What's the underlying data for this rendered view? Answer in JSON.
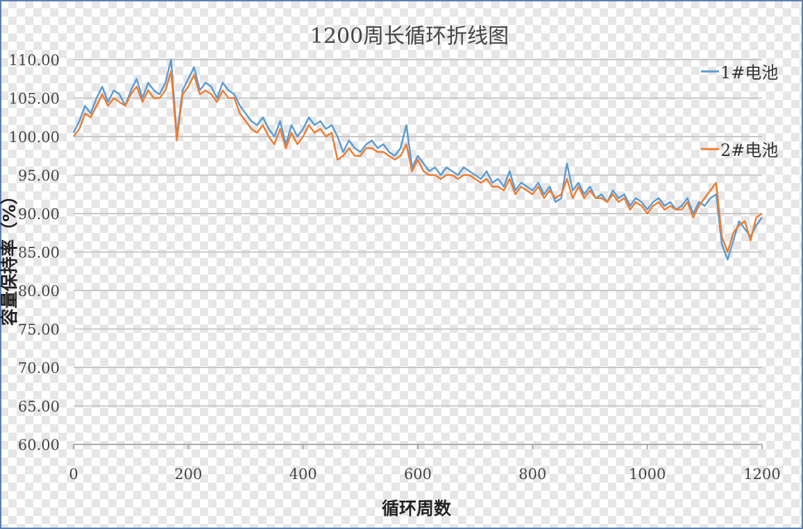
{
  "chart_data": {
    "type": "line",
    "title": "1200周长循环折线图",
    "xlabel": "循环周数",
    "ylabel": "容量保持率（%）",
    "xlim": [
      0,
      1200
    ],
    "ylim": [
      60,
      110
    ],
    "x_ticks": [
      "0",
      "200",
      "400",
      "600",
      "800",
      "1000",
      "1200"
    ],
    "y_ticks": [
      "110.00",
      "105.00",
      "100.00",
      "95.00",
      "90.00",
      "85.00",
      "80.00",
      "75.00",
      "70.00",
      "65.00",
      "60.00"
    ],
    "grid": true,
    "legend": "right",
    "series": [
      {
        "name": "1#电池",
        "color": "#5b9bd5",
        "x": [
          0,
          10,
          20,
          30,
          40,
          50,
          60,
          70,
          80,
          90,
          100,
          110,
          120,
          130,
          140,
          150,
          160,
          170,
          180,
          190,
          200,
          210,
          220,
          230,
          240,
          250,
          260,
          270,
          280,
          290,
          300,
          310,
          320,
          330,
          340,
          350,
          360,
          370,
          380,
          390,
          400,
          410,
          420,
          430,
          440,
          450,
          460,
          470,
          480,
          490,
          500,
          510,
          520,
          530,
          540,
          550,
          560,
          570,
          580,
          590,
          600,
          610,
          620,
          630,
          640,
          650,
          660,
          670,
          680,
          690,
          700,
          710,
          720,
          730,
          740,
          750,
          760,
          770,
          780,
          790,
          800,
          810,
          820,
          830,
          840,
          850,
          860,
          870,
          880,
          890,
          900,
          910,
          920,
          930,
          940,
          950,
          960,
          970,
          980,
          990,
          1000,
          1010,
          1020,
          1030,
          1040,
          1050,
          1060,
          1070,
          1080,
          1090,
          1100,
          1110,
          1120,
          1130,
          1140,
          1150,
          1160,
          1170,
          1180,
          1190,
          1200
        ],
        "values": [
          100.5,
          102.0,
          104.0,
          103.0,
          105.0,
          106.5,
          104.5,
          106.0,
          105.5,
          104.0,
          106.0,
          107.5,
          105.0,
          107.0,
          106.0,
          105.5,
          107.0,
          110.0,
          100.0,
          106.0,
          107.5,
          109.0,
          106.0,
          107.0,
          106.5,
          105.0,
          107.0,
          106.0,
          105.5,
          104.0,
          103.0,
          102.0,
          101.5,
          102.5,
          101.0,
          100.0,
          102.0,
          99.0,
          101.5,
          100.0,
          101.0,
          102.5,
          101.5,
          102.0,
          101.0,
          101.5,
          100.0,
          98.0,
          99.5,
          98.5,
          98.0,
          99.0,
          99.5,
          98.5,
          99.0,
          98.0,
          97.5,
          98.5,
          101.5,
          96.0,
          97.5,
          96.5,
          95.5,
          96.0,
          95.0,
          96.0,
          95.5,
          95.0,
          96.0,
          95.5,
          95.0,
          94.5,
          95.5,
          94.0,
          94.5,
          93.5,
          95.5,
          93.0,
          94.0,
          93.5,
          93.0,
          94.0,
          92.5,
          93.5,
          91.5,
          92.0,
          96.5,
          93.0,
          94.0,
          92.5,
          93.5,
          92.0,
          92.5,
          91.5,
          93.0,
          92.0,
          92.5,
          91.0,
          92.0,
          91.5,
          90.5,
          91.5,
          92.0,
          91.0,
          91.5,
          90.5,
          91.0,
          92.0,
          90.0,
          91.5,
          91.0,
          92.0,
          92.5,
          86.0,
          84.0,
          86.5,
          89.0,
          88.0,
          87.0,
          88.5,
          89.5
        ]
      },
      {
        "name": "2#电池",
        "color": "#ed7d31",
        "x": [
          0,
          10,
          20,
          30,
          40,
          50,
          60,
          70,
          80,
          90,
          100,
          110,
          120,
          130,
          140,
          150,
          160,
          170,
          180,
          190,
          200,
          210,
          220,
          230,
          240,
          250,
          260,
          270,
          280,
          290,
          300,
          310,
          320,
          330,
          340,
          350,
          360,
          370,
          380,
          390,
          400,
          410,
          420,
          430,
          440,
          450,
          460,
          470,
          480,
          490,
          500,
          510,
          520,
          530,
          540,
          550,
          560,
          570,
          580,
          590,
          600,
          610,
          620,
          630,
          640,
          650,
          660,
          670,
          680,
          690,
          700,
          710,
          720,
          730,
          740,
          750,
          760,
          770,
          780,
          790,
          800,
          810,
          820,
          830,
          840,
          850,
          860,
          870,
          880,
          890,
          900,
          910,
          920,
          930,
          940,
          950,
          960,
          970,
          980,
          990,
          1000,
          1010,
          1020,
          1030,
          1040,
          1050,
          1060,
          1070,
          1080,
          1090,
          1100,
          1110,
          1120,
          1130,
          1140,
          1150,
          1160,
          1170,
          1180,
          1190,
          1200
        ],
        "values": [
          100.0,
          101.0,
          103.0,
          102.5,
          104.0,
          105.5,
          104.0,
          105.0,
          104.5,
          104.0,
          105.5,
          106.5,
          104.5,
          106.0,
          105.0,
          105.0,
          106.0,
          108.5,
          99.5,
          105.5,
          106.5,
          108.0,
          105.5,
          106.0,
          105.5,
          104.5,
          106.0,
          105.0,
          105.0,
          103.0,
          102.0,
          101.0,
          100.5,
          101.5,
          100.0,
          99.0,
          101.0,
          98.5,
          100.5,
          99.0,
          100.0,
          101.5,
          100.5,
          101.0,
          100.0,
          100.5,
          97.0,
          97.5,
          98.5,
          97.5,
          97.5,
          98.5,
          98.5,
          98.0,
          98.0,
          97.5,
          97.0,
          97.5,
          99.0,
          95.5,
          97.0,
          95.5,
          95.0,
          95.0,
          94.5,
          95.0,
          95.0,
          94.5,
          95.0,
          95.0,
          94.5,
          94.0,
          94.5,
          93.5,
          93.5,
          93.0,
          94.5,
          92.5,
          93.5,
          93.0,
          92.5,
          93.5,
          92.0,
          93.0,
          92.0,
          92.5,
          94.5,
          92.0,
          93.5,
          92.0,
          93.0,
          92.0,
          92.0,
          91.5,
          92.5,
          91.5,
          92.0,
          90.5,
          91.5,
          91.0,
          90.0,
          91.0,
          91.5,
          90.5,
          91.0,
          90.5,
          90.5,
          91.5,
          89.5,
          91.0,
          92.0,
          93.0,
          94.0,
          87.0,
          85.0,
          87.5,
          88.5,
          89.0,
          86.5,
          89.5,
          90.0
        ]
      }
    ]
  }
}
